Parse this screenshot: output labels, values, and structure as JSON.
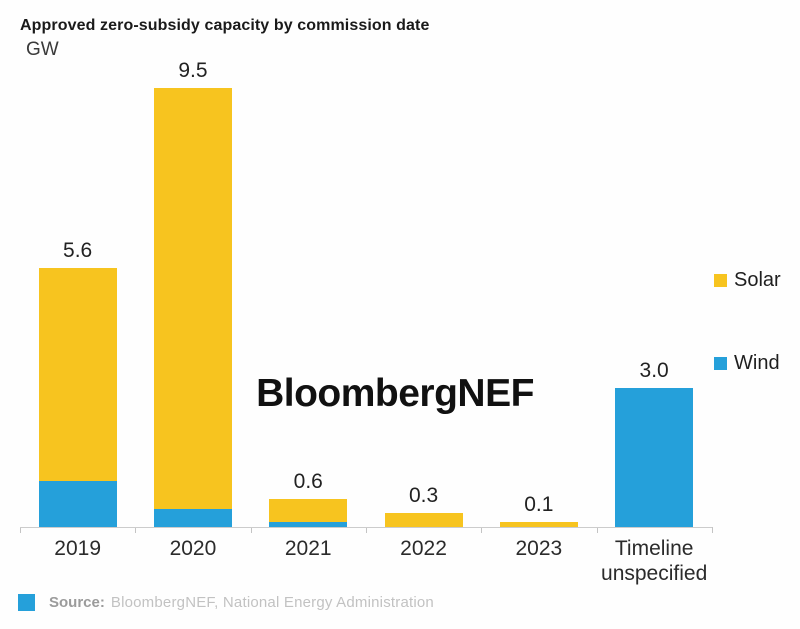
{
  "title": "Approved zero-subsidy capacity by commission date",
  "unit_label": "GW",
  "watermark": "BloombergNEF",
  "legend": {
    "solar": {
      "label": "Solar",
      "color": "#f7c41f"
    },
    "wind": {
      "label": "Wind",
      "color": "#25a0da"
    }
  },
  "footer": {
    "prefix": "Source:",
    "text": "BloombergNEF, National Energy Administration",
    "swatch_color": "#25a0da"
  },
  "colors": {
    "solar": "#f7c41f",
    "wind": "#25a0da",
    "axis": "#cccccc",
    "text": "#222222"
  },
  "chart_data": {
    "type": "bar",
    "stacked": true,
    "title": "Approved zero-subsidy capacity by commission date",
    "ylabel": "GW",
    "ylim": [
      0,
      10
    ],
    "grid": false,
    "legend_position": "right",
    "categories": [
      "2019",
      "2020",
      "2021",
      "2022",
      "2023",
      "Timeline unspecified"
    ],
    "series": [
      {
        "name": "Wind",
        "color": "#25a0da",
        "values": [
          1.0,
          0.4,
          0.1,
          0.0,
          0.0,
          3.0
        ]
      },
      {
        "name": "Solar",
        "color": "#f7c41f",
        "values": [
          4.6,
          9.1,
          0.5,
          0.3,
          0.1,
          0.0
        ]
      }
    ],
    "totals": [
      5.6,
      9.5,
      0.6,
      0.3,
      0.1,
      3.0
    ],
    "total_labels": [
      "5.6",
      "9.5",
      "0.6",
      "0.3",
      "0.1",
      "3.0"
    ]
  }
}
